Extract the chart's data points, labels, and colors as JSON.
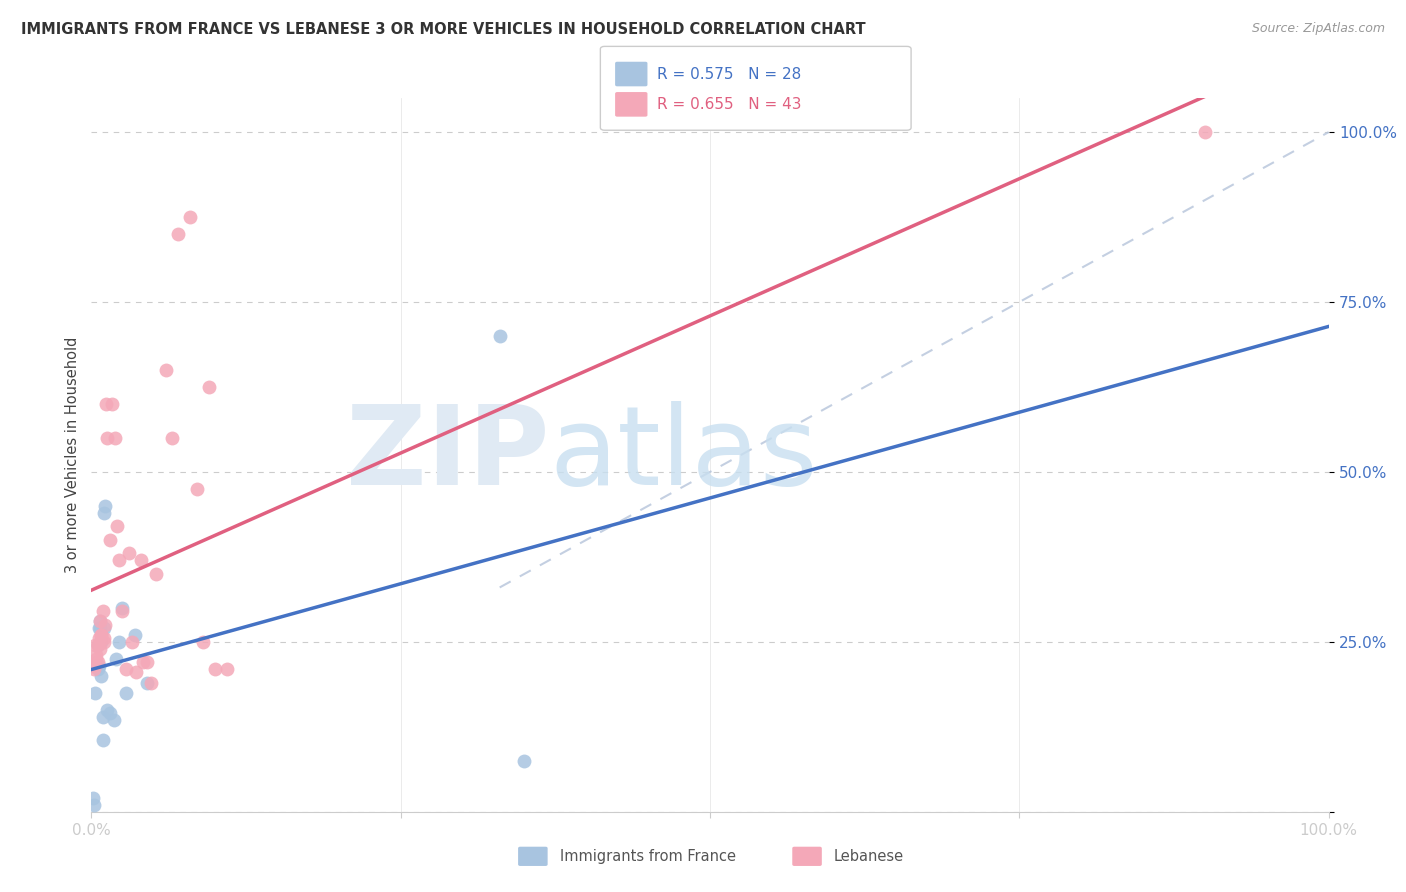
{
  "title": "IMMIGRANTS FROM FRANCE VS LEBANESE 3 OR MORE VEHICLES IN HOUSEHOLD CORRELATION CHART",
  "source": "Source: ZipAtlas.com",
  "ylabel": "3 or more Vehicles in Household",
  "legend_france": "Immigrants from France",
  "legend_lebanese": "Lebanese",
  "france_r": 0.575,
  "france_n": 28,
  "lebanese_r": 0.655,
  "lebanese_n": 43,
  "france_color": "#a8c4e0",
  "lebanese_color": "#f4a8b8",
  "france_line_color": "#4472c4",
  "lebanese_line_color": "#e06080",
  "diagonal_color": "#b0c0d8",
  "france_x": [
    0.001,
    0.002,
    0.003,
    0.004,
    0.005,
    0.005,
    0.006,
    0.006,
    0.007,
    0.007,
    0.008,
    0.008,
    0.009,
    0.009,
    0.01,
    0.01,
    0.011,
    0.013,
    0.015,
    0.018,
    0.02,
    0.022,
    0.025,
    0.028,
    0.035,
    0.045,
    0.33,
    0.35
  ],
  "france_y": [
    0.02,
    0.01,
    0.175,
    0.215,
    0.21,
    0.245,
    0.215,
    0.27,
    0.27,
    0.28,
    0.2,
    0.25,
    0.105,
    0.14,
    0.27,
    0.44,
    0.45,
    0.15,
    0.145,
    0.135,
    0.225,
    0.25,
    0.3,
    0.175,
    0.26,
    0.19,
    0.7,
    0.075
  ],
  "lebanese_x": [
    0.001,
    0.002,
    0.003,
    0.004,
    0.004,
    0.005,
    0.005,
    0.006,
    0.007,
    0.007,
    0.008,
    0.008,
    0.009,
    0.01,
    0.01,
    0.011,
    0.012,
    0.013,
    0.015,
    0.017,
    0.019,
    0.021,
    0.022,
    0.025,
    0.028,
    0.03,
    0.033,
    0.036,
    0.04,
    0.042,
    0.045,
    0.048,
    0.052,
    0.06,
    0.065,
    0.07,
    0.08,
    0.085,
    0.09,
    0.095,
    0.1,
    0.11,
    0.9
  ],
  "lebanese_y": [
    0.215,
    0.21,
    0.245,
    0.23,
    0.225,
    0.22,
    0.245,
    0.255,
    0.24,
    0.28,
    0.26,
    0.26,
    0.295,
    0.25,
    0.255,
    0.275,
    0.6,
    0.55,
    0.4,
    0.6,
    0.55,
    0.42,
    0.37,
    0.295,
    0.21,
    0.38,
    0.25,
    0.205,
    0.37,
    0.22,
    0.22,
    0.19,
    0.35,
    0.65,
    0.55,
    0.85,
    0.875,
    0.475,
    0.25,
    0.625,
    0.21,
    0.21,
    1.0
  ],
  "xlim": [
    0.0,
    1.0
  ],
  "ylim": [
    0.0,
    1.05
  ]
}
